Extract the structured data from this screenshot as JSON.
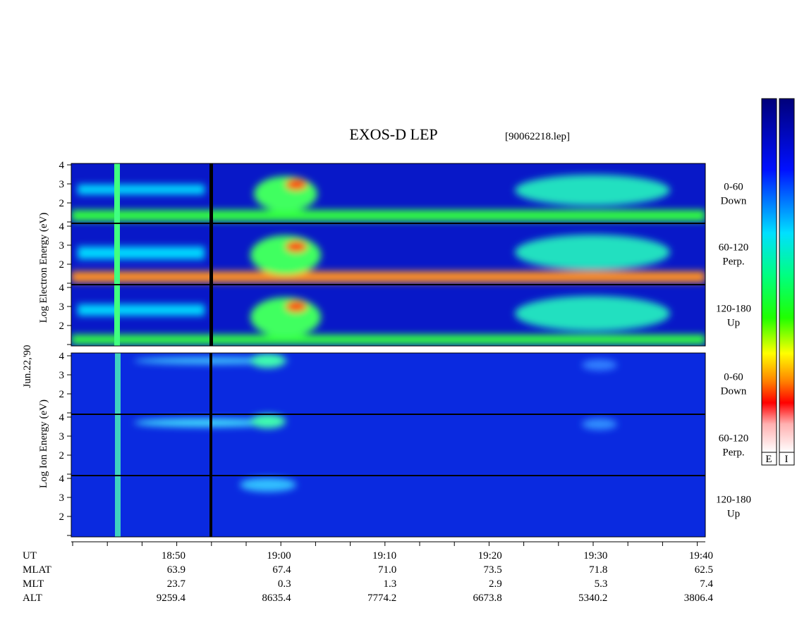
{
  "title": "EXOS-D LEP",
  "file": "[90062218.lep]",
  "date": "Jun.22,'90",
  "electron_axis_label": "Log  Electron  Energy (eV)",
  "ion_axis_label": "Log  Ion  Energy (eV)",
  "panels": [
    {
      "label_top": "0-60",
      "label_bottom": "Down",
      "yticks": [
        "2",
        "3",
        "4"
      ]
    },
    {
      "label_top": "60-120",
      "label_bottom": "Perp.",
      "yticks": [
        "2",
        "3",
        "4"
      ]
    },
    {
      "label_top": "120-180",
      "label_bottom": "Up",
      "yticks": [
        "2",
        "3",
        "4"
      ]
    },
    {
      "label_top": "0-60",
      "label_bottom": "Down",
      "yticks": [
        "2",
        "3",
        "4"
      ]
    },
    {
      "label_top": "60-120",
      "label_bottom": "Perp.",
      "yticks": [
        "2",
        "3",
        "4"
      ]
    },
    {
      "label_top": "120-180",
      "label_bottom": "Up",
      "yticks": [
        "2",
        "3",
        "4"
      ]
    }
  ],
  "ephemeris": [
    {
      "name": "UT",
      "values": [
        "18:50",
        "19:00",
        "19:10",
        "19:20",
        "19:30",
        "19:40"
      ]
    },
    {
      "name": "MLAT",
      "values": [
        "63.9",
        "67.4",
        "71.0",
        "73.5",
        "71.8",
        "62.5"
      ]
    },
    {
      "name": "MLT",
      "values": [
        "23.7",
        "0.3",
        "1.3",
        "2.9",
        "5.3",
        "7.4"
      ]
    },
    {
      "name": "ALT",
      "values": [
        "9259.4",
        "8635.4",
        "7774.2",
        "6673.8",
        "5340.2",
        "3806.4"
      ]
    }
  ],
  "colorbar_labels": [
    "E",
    "I"
  ]
}
